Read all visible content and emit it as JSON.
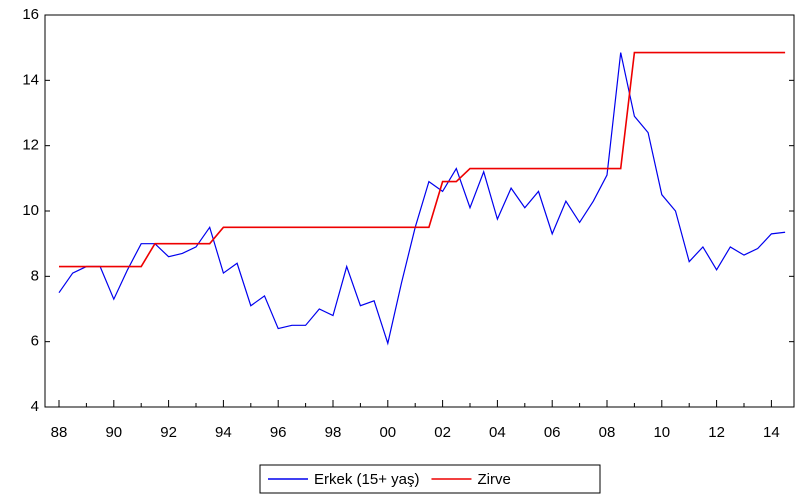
{
  "chart_data": {
    "type": "line",
    "categories": [
      "88",
      null,
      null,
      null,
      "90",
      null,
      null,
      null,
      "92",
      null,
      null,
      null,
      "94",
      null,
      null,
      null,
      "96",
      null,
      null,
      null,
      "98",
      null,
      null,
      null,
      "00",
      null,
      null,
      null,
      "02",
      null,
      null,
      null,
      "04",
      null,
      null,
      null,
      "06",
      null,
      null,
      null,
      "08",
      null,
      null,
      null,
      "10",
      null,
      null,
      null,
      "12",
      null,
      null,
      null,
      "14",
      null
    ],
    "series": [
      {
        "name": "Erkek (15+ yaş)",
        "color": "#0000ee",
        "values": [
          7.5,
          8.1,
          8.3,
          8.3,
          7.3,
          8.2,
          9.0,
          9.0,
          8.6,
          8.7,
          8.9,
          9.5,
          8.1,
          8.4,
          7.1,
          7.4,
          6.4,
          6.5,
          6.5,
          7.0,
          6.8,
          8.3,
          7.1,
          7.25,
          5.95,
          7.8,
          9.5,
          10.9,
          10.6,
          11.3,
          10.1,
          11.2,
          9.75,
          10.7,
          10.1,
          10.6,
          9.3,
          10.3,
          9.65,
          10.3,
          11.1,
          14.85,
          12.9,
          12.4,
          10.5,
          10.0,
          8.45,
          8.9,
          8.2,
          8.9,
          8.65,
          8.85,
          9.3,
          9.35
        ]
      },
      {
        "name": "Zirve",
        "color": "#ee0000",
        "values": [
          8.3,
          8.3,
          8.3,
          8.3,
          8.3,
          8.3,
          8.3,
          9.0,
          9.0,
          9.0,
          9.0,
          9.0,
          9.5,
          9.5,
          9.5,
          9.5,
          9.5,
          9.5,
          9.5,
          9.5,
          9.5,
          9.5,
          9.5,
          9.5,
          9.5,
          9.5,
          9.5,
          9.5,
          10.9,
          10.9,
          11.3,
          11.3,
          11.3,
          11.3,
          11.3,
          11.3,
          11.3,
          11.3,
          11.3,
          11.3,
          11.3,
          11.3,
          14.85,
          14.85,
          14.85,
          14.85,
          14.85,
          14.85,
          14.85,
          14.85,
          14.85,
          14.85,
          14.85,
          14.85
        ]
      }
    ],
    "ylim": [
      4,
      16
    ],
    "yticks": [
      4,
      6,
      8,
      10,
      12,
      14,
      16
    ],
    "grid": false,
    "legend": "bottom"
  }
}
